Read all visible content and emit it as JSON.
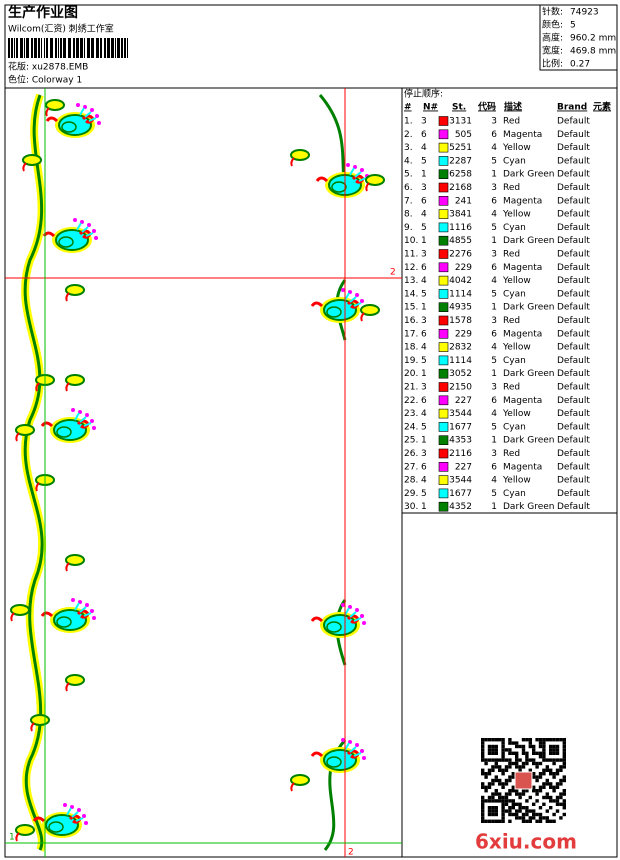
{
  "header": {
    "title": "生产作业图",
    "studio": "Wilcom(汇资) 刺绣工作室",
    "design": "花版: xu2878.EMB",
    "colorway": "色位: Colorway 1"
  },
  "info": [
    {
      "label": "针数:",
      "value": "74923"
    },
    {
      "label": "颜色:",
      "value": "5"
    },
    {
      "label": "高度:",
      "value": "960.2 mm"
    },
    {
      "label": "宽度:",
      "value": "469.8 mm"
    },
    {
      "label": "比例:",
      "value": "0.27"
    }
  ],
  "design": {
    "markers": [
      "2",
      "1",
      "2"
    ],
    "watermark": "6xiu.com"
  },
  "table": {
    "title": "停止顺序:",
    "columns": [
      "#",
      "N#",
      "St.",
      "代码",
      "描述",
      "Brand",
      "元素"
    ],
    "rows": [
      {
        "no": "1.",
        "needle": "3",
        "color": "#ff0000",
        "stitches": "3131",
        "code": "3",
        "desc": "Red",
        "brand": "Default"
      },
      {
        "no": "2.",
        "needle": "6",
        "color": "#ff00ff",
        "stitches": "505",
        "code": "6",
        "desc": "Magenta",
        "brand": "Default"
      },
      {
        "no": "3.",
        "needle": "4",
        "color": "#ffff00",
        "stitches": "5251",
        "code": "4",
        "desc": "Yellow",
        "brand": "Default"
      },
      {
        "no": "4.",
        "needle": "5",
        "color": "#00ffff",
        "stitches": "2287",
        "code": "5",
        "desc": "Cyan",
        "brand": "Default"
      },
      {
        "no": "5.",
        "needle": "1",
        "color": "#008000",
        "stitches": "6258",
        "code": "1",
        "desc": "Dark Green",
        "brand": "Default"
      },
      {
        "no": "6.",
        "needle": "3",
        "color": "#ff0000",
        "stitches": "2168",
        "code": "3",
        "desc": "Red",
        "brand": "Default"
      },
      {
        "no": "7.",
        "needle": "6",
        "color": "#ff00ff",
        "stitches": "241",
        "code": "6",
        "desc": "Magenta",
        "brand": "Default"
      },
      {
        "no": "8.",
        "needle": "4",
        "color": "#ffff00",
        "stitches": "3841",
        "code": "4",
        "desc": "Yellow",
        "brand": "Default"
      },
      {
        "no": "9.",
        "needle": "5",
        "color": "#00ffff",
        "stitches": "1116",
        "code": "5",
        "desc": "Cyan",
        "brand": "Default"
      },
      {
        "no": "10.",
        "needle": "1",
        "color": "#008000",
        "stitches": "4855",
        "code": "1",
        "desc": "Dark Green",
        "brand": "Default"
      },
      {
        "no": "11.",
        "needle": "3",
        "color": "#ff0000",
        "stitches": "2276",
        "code": "3",
        "desc": "Red",
        "brand": "Default"
      },
      {
        "no": "12.",
        "needle": "6",
        "color": "#ff00ff",
        "stitches": "229",
        "code": "6",
        "desc": "Magenta",
        "brand": "Default"
      },
      {
        "no": "13.",
        "needle": "4",
        "color": "#ffff00",
        "stitches": "4042",
        "code": "4",
        "desc": "Yellow",
        "brand": "Default"
      },
      {
        "no": "14.",
        "needle": "5",
        "color": "#00ffff",
        "stitches": "1114",
        "code": "5",
        "desc": "Cyan",
        "brand": "Default"
      },
      {
        "no": "15.",
        "needle": "1",
        "color": "#008000",
        "stitches": "4935",
        "code": "1",
        "desc": "Dark Green",
        "brand": "Default"
      },
      {
        "no": "16.",
        "needle": "3",
        "color": "#ff0000",
        "stitches": "1578",
        "code": "3",
        "desc": "Red",
        "brand": "Default"
      },
      {
        "no": "17.",
        "needle": "6",
        "color": "#ff00ff",
        "stitches": "229",
        "code": "6",
        "desc": "Magenta",
        "brand": "Default"
      },
      {
        "no": "18.",
        "needle": "4",
        "color": "#ffff00",
        "stitches": "2832",
        "code": "4",
        "desc": "Yellow",
        "brand": "Default"
      },
      {
        "no": "19.",
        "needle": "5",
        "color": "#00ffff",
        "stitches": "1114",
        "code": "5",
        "desc": "Cyan",
        "brand": "Default"
      },
      {
        "no": "20.",
        "needle": "1",
        "color": "#008000",
        "stitches": "3052",
        "code": "1",
        "desc": "Dark Green",
        "brand": "Default"
      },
      {
        "no": "21.",
        "needle": "3",
        "color": "#ff0000",
        "stitches": "2150",
        "code": "3",
        "desc": "Red",
        "brand": "Default"
      },
      {
        "no": "22.",
        "needle": "6",
        "color": "#ff00ff",
        "stitches": "227",
        "code": "6",
        "desc": "Magenta",
        "brand": "Default"
      },
      {
        "no": "23.",
        "needle": "4",
        "color": "#ffff00",
        "stitches": "3544",
        "code": "4",
        "desc": "Yellow",
        "brand": "Default"
      },
      {
        "no": "24.",
        "needle": "5",
        "color": "#00ffff",
        "stitches": "1677",
        "code": "5",
        "desc": "Cyan",
        "brand": "Default"
      },
      {
        "no": "25.",
        "needle": "1",
        "color": "#008000",
        "stitches": "4353",
        "code": "1",
        "desc": "Dark Green",
        "brand": "Default"
      },
      {
        "no": "26.",
        "needle": "3",
        "color": "#ff0000",
        "stitches": "2116",
        "code": "3",
        "desc": "Red",
        "brand": "Default"
      },
      {
        "no": "27.",
        "needle": "6",
        "color": "#ff00ff",
        "stitches": "227",
        "code": "6",
        "desc": "Magenta",
        "brand": "Default"
      },
      {
        "no": "28.",
        "needle": "4",
        "color": "#ffff00",
        "stitches": "3544",
        "code": "4",
        "desc": "Yellow",
        "brand": "Default"
      },
      {
        "no": "29.",
        "needle": "5",
        "color": "#00ffff",
        "stitches": "1677",
        "code": "5",
        "desc": "Cyan",
        "brand": "Default"
      },
      {
        "no": "30.",
        "needle": "1",
        "color": "#008000",
        "stitches": "4352",
        "code": "1",
        "desc": "Dark Green",
        "brand": "Default"
      }
    ]
  }
}
